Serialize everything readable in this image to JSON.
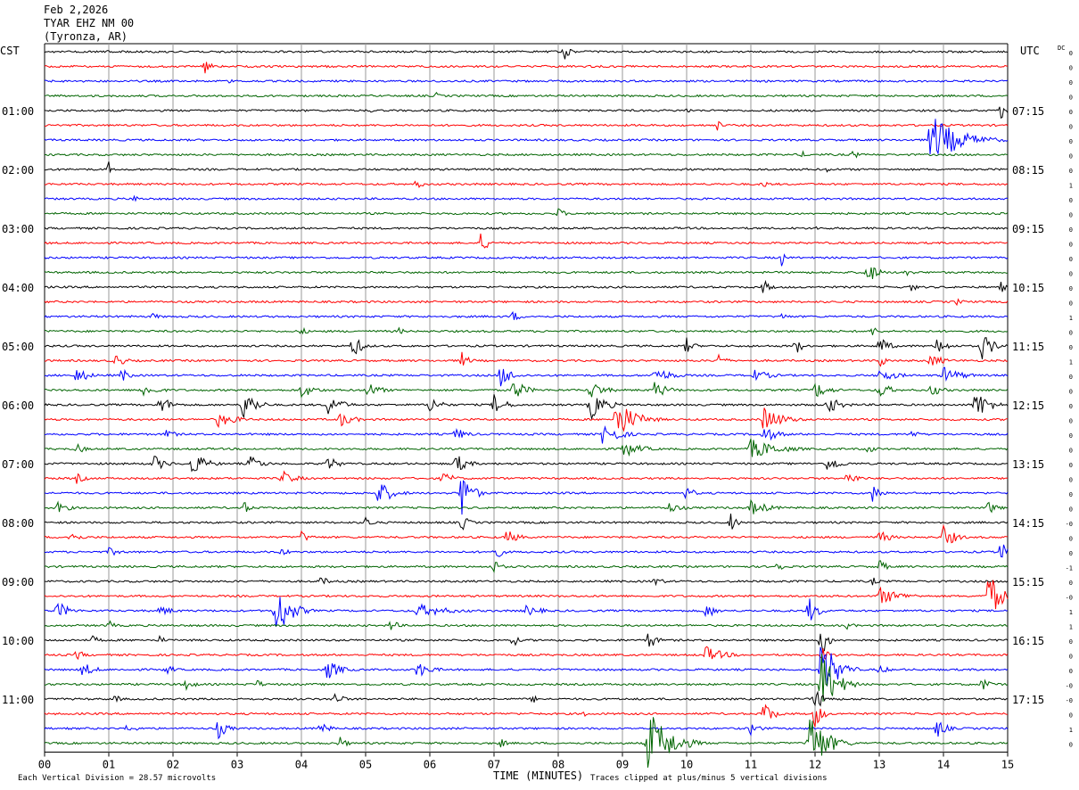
{
  "header": {
    "date": "Feb 2,2026",
    "station": "TYAR EHZ NM 00",
    "location": "(Tyronza, AR)"
  },
  "chart_data": {
    "type": "line",
    "left_tz": "CST",
    "right_tz": "UTC",
    "dc_label": "DC",
    "xlabel": "TIME (MINUTES)",
    "xlim": [
      0,
      15
    ],
    "x_ticks": [
      "00",
      "01",
      "02",
      "03",
      "04",
      "05",
      "06",
      "07",
      "08",
      "09",
      "10",
      "11",
      "12",
      "13",
      "14",
      "15"
    ],
    "trace_count": 48,
    "trace_minutes": 15,
    "trace_colors": [
      "#000000",
      "#ff0000",
      "#0000ff",
      "#006400"
    ],
    "left_hour_labels": [
      "01:00",
      "02:00",
      "03:00",
      "04:00",
      "05:00",
      "06:00",
      "07:00",
      "08:00",
      "09:00",
      "10:00",
      "11:00"
    ],
    "right_hour_labels": [
      "07:15",
      "08:15",
      "09:15",
      "10:15",
      "11:15",
      "12:15",
      "13:15",
      "14:15",
      "15:15",
      "16:15",
      "17:15"
    ],
    "dc_offsets": [
      "0",
      "0",
      "0",
      "0",
      "0",
      "0",
      "0",
      "0",
      "0",
      "1",
      "0",
      "0",
      "0",
      "0",
      "0",
      "0",
      "0",
      "0",
      "1",
      "0",
      "0",
      "1",
      "0",
      "0",
      "0",
      "0",
      "0",
      "0",
      "0",
      "0",
      "0",
      "0",
      "-0",
      "0",
      "0",
      "-1",
      "0",
      "-0",
      "1",
      "1",
      "0",
      "0",
      "0",
      "-0",
      "-0",
      "0",
      "1",
      "0"
    ],
    "scale_note": "Each Vertical Division =  28.57 microvolts",
    "clip_note": "Traces clipped at plus/minus 5 vertical divisions",
    "events": [
      {
        "trace": 0,
        "minute": 0.9,
        "amp": 5,
        "dur": 0.25
      },
      {
        "trace": 0,
        "minute": 8.1,
        "amp": 9,
        "dur": 0.25
      },
      {
        "trace": 1,
        "minute": 2.5,
        "amp": 8,
        "dur": 0.3
      },
      {
        "trace": 2,
        "minute": 2.9,
        "amp": 4,
        "dur": 0.2
      },
      {
        "trace": 3,
        "minute": 6.1,
        "amp": 4,
        "dur": 0.2
      },
      {
        "trace": 4,
        "minute": 5.1,
        "amp": 3,
        "dur": 0.1
      },
      {
        "trace": 4,
        "minute": 10.0,
        "amp": 4,
        "dur": 0.2
      },
      {
        "trace": 4,
        "minute": 14.9,
        "amp": 10,
        "dur": 0.3
      },
      {
        "trace": 5,
        "minute": 10.5,
        "amp": 10,
        "dur": 0.08
      },
      {
        "trace": 5,
        "minute": 0.2,
        "amp": 3,
        "dur": 0.2
      },
      {
        "trace": 6,
        "minute": 13.8,
        "amp": 30,
        "dur": 1.2
      },
      {
        "trace": 7,
        "minute": 12.6,
        "amp": 8,
        "dur": 0.15
      },
      {
        "trace": 7,
        "minute": 11.8,
        "amp": 4,
        "dur": 0.3
      },
      {
        "trace": 8,
        "minute": 1.0,
        "amp": 9,
        "dur": 0.06
      },
      {
        "trace": 8,
        "minute": 12.2,
        "amp": 4,
        "dur": 0.3
      },
      {
        "trace": 9,
        "minute": 5.8,
        "amp": 7,
        "dur": 0.25
      },
      {
        "trace": 9,
        "minute": 11.2,
        "amp": 6,
        "dur": 0.2
      },
      {
        "trace": 10,
        "minute": 1.4,
        "amp": 6,
        "dur": 0.15
      },
      {
        "trace": 11,
        "minute": 8.0,
        "amp": 7,
        "dur": 0.3
      },
      {
        "trace": 12,
        "minute": 12.0,
        "amp": 3,
        "dur": 0.2
      },
      {
        "trace": 13,
        "minute": 6.8,
        "amp": 13,
        "dur": 0.3
      },
      {
        "trace": 14,
        "minute": 11.5,
        "amp": 16,
        "dur": 0.08
      },
      {
        "trace": 15,
        "minute": 12.8,
        "amp": 16,
        "dur": 0.4
      },
      {
        "trace": 15,
        "minute": 13.4,
        "amp": 8,
        "dur": 0.25
      },
      {
        "trace": 16,
        "minute": 11.2,
        "amp": 9,
        "dur": 0.3
      },
      {
        "trace": 16,
        "minute": 13.5,
        "amp": 5,
        "dur": 0.3
      },
      {
        "trace": 16,
        "minute": 14.9,
        "amp": 7,
        "dur": 0.2
      },
      {
        "trace": 17,
        "minute": 3.4,
        "amp": 4,
        "dur": 0.1
      },
      {
        "trace": 17,
        "minute": 14.2,
        "amp": 4,
        "dur": 0.4
      },
      {
        "trace": 18,
        "minute": 1.7,
        "amp": 6,
        "dur": 0.2
      },
      {
        "trace": 18,
        "minute": 7.3,
        "amp": 7,
        "dur": 0.3
      },
      {
        "trace": 18,
        "minute": 11.5,
        "amp": 6,
        "dur": 0.2
      },
      {
        "trace": 19,
        "minute": 4.0,
        "amp": 5,
        "dur": 0.3
      },
      {
        "trace": 19,
        "minute": 5.5,
        "amp": 5,
        "dur": 0.3
      },
      {
        "trace": 19,
        "minute": 12.9,
        "amp": 6,
        "dur": 0.3
      },
      {
        "trace": 20,
        "minute": 4.8,
        "amp": 14,
        "dur": 0.4
      },
      {
        "trace": 20,
        "minute": 10.0,
        "amp": 10,
        "dur": 0.3
      },
      {
        "trace": 20,
        "minute": 11.7,
        "amp": 10,
        "dur": 0.3
      },
      {
        "trace": 20,
        "minute": 13.0,
        "amp": 12,
        "dur": 0.4
      },
      {
        "trace": 20,
        "minute": 13.9,
        "amp": 12,
        "dur": 0.4
      },
      {
        "trace": 20,
        "minute": 14.6,
        "amp": 16,
        "dur": 0.5
      },
      {
        "trace": 21,
        "minute": 1.1,
        "amp": 9,
        "dur": 0.4
      },
      {
        "trace": 21,
        "minute": 6.5,
        "amp": 10,
        "dur": 0.3
      },
      {
        "trace": 21,
        "minute": 10.5,
        "amp": 9,
        "dur": 0.3
      },
      {
        "trace": 21,
        "minute": 13.0,
        "amp": 9,
        "dur": 0.3
      },
      {
        "trace": 21,
        "minute": 13.8,
        "amp": 8,
        "dur": 0.6
      },
      {
        "trace": 22,
        "minute": 0.5,
        "amp": 10,
        "dur": 0.5
      },
      {
        "trace": 22,
        "minute": 1.2,
        "amp": 8,
        "dur": 0.4
      },
      {
        "trace": 22,
        "minute": 7.1,
        "amp": 14,
        "dur": 0.5
      },
      {
        "trace": 22,
        "minute": 9.5,
        "amp": 9,
        "dur": 0.8
      },
      {
        "trace": 22,
        "minute": 11.0,
        "amp": 8,
        "dur": 0.8
      },
      {
        "trace": 22,
        "minute": 13.0,
        "amp": 8,
        "dur": 0.8
      },
      {
        "trace": 22,
        "minute": 14.0,
        "amp": 10,
        "dur": 0.8
      },
      {
        "trace": 23,
        "minute": 1.5,
        "amp": 8,
        "dur": 0.7
      },
      {
        "trace": 23,
        "minute": 4.0,
        "amp": 9,
        "dur": 0.6
      },
      {
        "trace": 23,
        "minute": 5.0,
        "amp": 10,
        "dur": 0.6
      },
      {
        "trace": 23,
        "minute": 7.3,
        "amp": 14,
        "dur": 0.5
      },
      {
        "trace": 23,
        "minute": 8.5,
        "amp": 11,
        "dur": 0.6
      },
      {
        "trace": 23,
        "minute": 9.5,
        "amp": 10,
        "dur": 0.6
      },
      {
        "trace": 23,
        "minute": 12.0,
        "amp": 10,
        "dur": 0.6
      },
      {
        "trace": 23,
        "minute": 13.0,
        "amp": 10,
        "dur": 0.5
      },
      {
        "trace": 23,
        "minute": 13.8,
        "amp": 8,
        "dur": 0.5
      },
      {
        "trace": 24,
        "minute": 1.8,
        "amp": 11,
        "dur": 0.5
      },
      {
        "trace": 24,
        "minute": 3.1,
        "amp": 20,
        "dur": 0.5
      },
      {
        "trace": 24,
        "minute": 4.4,
        "amp": 13,
        "dur": 0.6
      },
      {
        "trace": 24,
        "minute": 6.0,
        "amp": 10,
        "dur": 0.5
      },
      {
        "trace": 24,
        "minute": 7.0,
        "amp": 12,
        "dur": 0.5
      },
      {
        "trace": 24,
        "minute": 8.5,
        "amp": 18,
        "dur": 0.6
      },
      {
        "trace": 24,
        "minute": 12.2,
        "amp": 10,
        "dur": 0.6
      },
      {
        "trace": 24,
        "minute": 14.5,
        "amp": 18,
        "dur": 0.6
      },
      {
        "trace": 25,
        "minute": 2.7,
        "amp": 9,
        "dur": 0.8
      },
      {
        "trace": 25,
        "minute": 4.6,
        "amp": 9,
        "dur": 0.6
      },
      {
        "trace": 25,
        "minute": 8.9,
        "amp": 24,
        "dur": 0.8
      },
      {
        "trace": 25,
        "minute": 11.2,
        "amp": 15,
        "dur": 0.8
      },
      {
        "trace": 26,
        "minute": 1.9,
        "amp": 9,
        "dur": 0.3
      },
      {
        "trace": 26,
        "minute": 6.4,
        "amp": 8,
        "dur": 0.5
      },
      {
        "trace": 26,
        "minute": 8.7,
        "amp": 14,
        "dur": 0.7
      },
      {
        "trace": 26,
        "minute": 11.2,
        "amp": 10,
        "dur": 0.6
      },
      {
        "trace": 26,
        "minute": 13.5,
        "amp": 6,
        "dur": 0.3
      },
      {
        "trace": 27,
        "minute": 0.5,
        "amp": 6,
        "dur": 0.4
      },
      {
        "trace": 27,
        "minute": 9.0,
        "amp": 10,
        "dur": 0.8
      },
      {
        "trace": 27,
        "minute": 11.0,
        "amp": 12,
        "dur": 1.2
      },
      {
        "trace": 27,
        "minute": 12.8,
        "amp": 6,
        "dur": 0.4
      },
      {
        "trace": 28,
        "minute": 1.7,
        "amp": 10,
        "dur": 0.5
      },
      {
        "trace": 28,
        "minute": 2.3,
        "amp": 14,
        "dur": 0.6
      },
      {
        "trace": 28,
        "minute": 3.2,
        "amp": 10,
        "dur": 0.5
      },
      {
        "trace": 28,
        "minute": 4.4,
        "amp": 9,
        "dur": 0.5
      },
      {
        "trace": 28,
        "minute": 6.4,
        "amp": 12,
        "dur": 0.5
      },
      {
        "trace": 28,
        "minute": 12.2,
        "amp": 11,
        "dur": 0.5
      },
      {
        "trace": 29,
        "minute": 0.5,
        "amp": 6,
        "dur": 0.4
      },
      {
        "trace": 29,
        "minute": 3.7,
        "amp": 9,
        "dur": 0.6
      },
      {
        "trace": 29,
        "minute": 6.2,
        "amp": 8,
        "dur": 0.5
      },
      {
        "trace": 29,
        "minute": 12.5,
        "amp": 8,
        "dur": 0.5
      },
      {
        "trace": 30,
        "minute": 5.2,
        "amp": 15,
        "dur": 0.6
      },
      {
        "trace": 30,
        "minute": 6.5,
        "amp": 30,
        "dur": 0.4
      },
      {
        "trace": 30,
        "minute": 10.0,
        "amp": 10,
        "dur": 0.3
      },
      {
        "trace": 30,
        "minute": 12.9,
        "amp": 11,
        "dur": 0.4
      },
      {
        "trace": 31,
        "minute": 0.2,
        "amp": 7,
        "dur": 0.5
      },
      {
        "trace": 31,
        "minute": 3.1,
        "amp": 8,
        "dur": 0.3
      },
      {
        "trace": 31,
        "minute": 9.7,
        "amp": 7,
        "dur": 0.6
      },
      {
        "trace": 31,
        "minute": 11.0,
        "amp": 9,
        "dur": 0.8
      },
      {
        "trace": 31,
        "minute": 14.7,
        "amp": 8,
        "dur": 0.4
      },
      {
        "trace": 32,
        "minute": 5.0,
        "amp": 8,
        "dur": 0.3
      },
      {
        "trace": 32,
        "minute": 6.5,
        "amp": 10,
        "dur": 0.3
      },
      {
        "trace": 32,
        "minute": 10.7,
        "amp": 14,
        "dur": 0.2
      },
      {
        "trace": 33,
        "minute": 0.4,
        "amp": 8,
        "dur": 0.4
      },
      {
        "trace": 33,
        "minute": 4.0,
        "amp": 7,
        "dur": 0.4
      },
      {
        "trace": 33,
        "minute": 7.2,
        "amp": 9,
        "dur": 0.5
      },
      {
        "trace": 33,
        "minute": 13.0,
        "amp": 8,
        "dur": 0.5
      },
      {
        "trace": 33,
        "minute": 14.0,
        "amp": 14,
        "dur": 0.5
      },
      {
        "trace": 34,
        "minute": 1.0,
        "amp": 5,
        "dur": 0.6
      },
      {
        "trace": 34,
        "minute": 3.7,
        "amp": 6,
        "dur": 0.3
      },
      {
        "trace": 34,
        "minute": 7.0,
        "amp": 12,
        "dur": 0.3
      },
      {
        "trace": 34,
        "minute": 14.9,
        "amp": 14,
        "dur": 0.3
      },
      {
        "trace": 35,
        "minute": 7.0,
        "amp": 9,
        "dur": 0.3
      },
      {
        "trace": 35,
        "minute": 11.4,
        "amp": 8,
        "dur": 0.3
      },
      {
        "trace": 35,
        "minute": 13.0,
        "amp": 9,
        "dur": 0.3
      },
      {
        "trace": 36,
        "minute": 4.3,
        "amp": 6,
        "dur": 0.4
      },
      {
        "trace": 36,
        "minute": 9.5,
        "amp": 6,
        "dur": 0.4
      },
      {
        "trace": 36,
        "minute": 12.9,
        "amp": 5,
        "dur": 0.3
      },
      {
        "trace": 37,
        "minute": 13.0,
        "amp": 10,
        "dur": 1.0
      },
      {
        "trace": 37,
        "minute": 14.7,
        "amp": 30,
        "dur": 0.5
      },
      {
        "trace": 38,
        "minute": 0.2,
        "amp": 11,
        "dur": 0.5
      },
      {
        "trace": 38,
        "minute": 3.6,
        "amp": 33,
        "dur": 0.6
      },
      {
        "trace": 38,
        "minute": 5.8,
        "amp": 8,
        "dur": 1.4
      },
      {
        "trace": 38,
        "minute": 7.5,
        "amp": 6,
        "dur": 0.8
      },
      {
        "trace": 38,
        "minute": 10.3,
        "amp": 10,
        "dur": 0.4
      },
      {
        "trace": 38,
        "minute": 11.9,
        "amp": 16,
        "dur": 0.4
      },
      {
        "trace": 38,
        "minute": 1.8,
        "amp": 6,
        "dur": 0.6
      },
      {
        "trace": 39,
        "minute": 1.0,
        "amp": 6,
        "dur": 0.3
      },
      {
        "trace": 39,
        "minute": 5.4,
        "amp": 8,
        "dur": 0.3
      },
      {
        "trace": 39,
        "minute": 12.5,
        "amp": 5,
        "dur": 0.3
      },
      {
        "trace": 40,
        "minute": 0.7,
        "amp": 7,
        "dur": 0.4
      },
      {
        "trace": 40,
        "minute": 1.8,
        "amp": 6,
        "dur": 0.2
      },
      {
        "trace": 40,
        "minute": 7.3,
        "amp": 9,
        "dur": 0.2
      },
      {
        "trace": 40,
        "minute": 9.4,
        "amp": 14,
        "dur": 0.3
      },
      {
        "trace": 40,
        "minute": 12.1,
        "amp": 24,
        "dur": 0.25
      },
      {
        "trace": 41,
        "minute": 0.5,
        "amp": 6,
        "dur": 0.4
      },
      {
        "trace": 41,
        "minute": 10.3,
        "amp": 10,
        "dur": 0.8
      },
      {
        "trace": 41,
        "minute": 12.1,
        "amp": 10,
        "dur": 0.4
      },
      {
        "trace": 42,
        "minute": 0.6,
        "amp": 9,
        "dur": 0.5
      },
      {
        "trace": 42,
        "minute": 1.9,
        "amp": 8,
        "dur": 0.3
      },
      {
        "trace": 42,
        "minute": 4.4,
        "amp": 12,
        "dur": 0.6
      },
      {
        "trace": 42,
        "minute": 5.8,
        "amp": 10,
        "dur": 0.6
      },
      {
        "trace": 42,
        "minute": 12.1,
        "amp": 40,
        "dur": 0.6
      },
      {
        "trace": 42,
        "minute": 13.0,
        "amp": 6,
        "dur": 0.4
      },
      {
        "trace": 43,
        "minute": 2.2,
        "amp": 10,
        "dur": 0.3
      },
      {
        "trace": 43,
        "minute": 3.3,
        "amp": 6,
        "dur": 0.3
      },
      {
        "trace": 43,
        "minute": 12.1,
        "amp": 40,
        "dur": 0.6
      },
      {
        "trace": 43,
        "minute": 14.6,
        "amp": 8,
        "dur": 0.4
      },
      {
        "trace": 44,
        "minute": 1.1,
        "amp": 6,
        "dur": 0.2
      },
      {
        "trace": 44,
        "minute": 4.5,
        "amp": 9,
        "dur": 0.4
      },
      {
        "trace": 44,
        "minute": 7.6,
        "amp": 6,
        "dur": 0.2
      },
      {
        "trace": 44,
        "minute": 12.0,
        "amp": 14,
        "dur": 0.4
      },
      {
        "trace": 45,
        "minute": 11.2,
        "amp": 16,
        "dur": 0.4
      },
      {
        "trace": 45,
        "minute": 12.0,
        "amp": 18,
        "dur": 0.3
      },
      {
        "trace": 45,
        "minute": 8.4,
        "amp": 4,
        "dur": 0.2
      },
      {
        "trace": 46,
        "minute": 1.3,
        "amp": 8,
        "dur": 0.3
      },
      {
        "trace": 46,
        "minute": 2.7,
        "amp": 12,
        "dur": 0.4
      },
      {
        "trace": 46,
        "minute": 4.3,
        "amp": 8,
        "dur": 0.4
      },
      {
        "trace": 46,
        "minute": 11.0,
        "amp": 8,
        "dur": 0.4
      },
      {
        "trace": 46,
        "minute": 13.9,
        "amp": 12,
        "dur": 0.4
      },
      {
        "trace": 47,
        "minute": 4.6,
        "amp": 8,
        "dur": 0.3
      },
      {
        "trace": 47,
        "minute": 7.1,
        "amp": 6,
        "dur": 0.3
      },
      {
        "trace": 47,
        "minute": 9.4,
        "amp": 40,
        "dur": 0.9
      },
      {
        "trace": 47,
        "minute": 11.9,
        "amp": 40,
        "dur": 0.7
      }
    ]
  }
}
